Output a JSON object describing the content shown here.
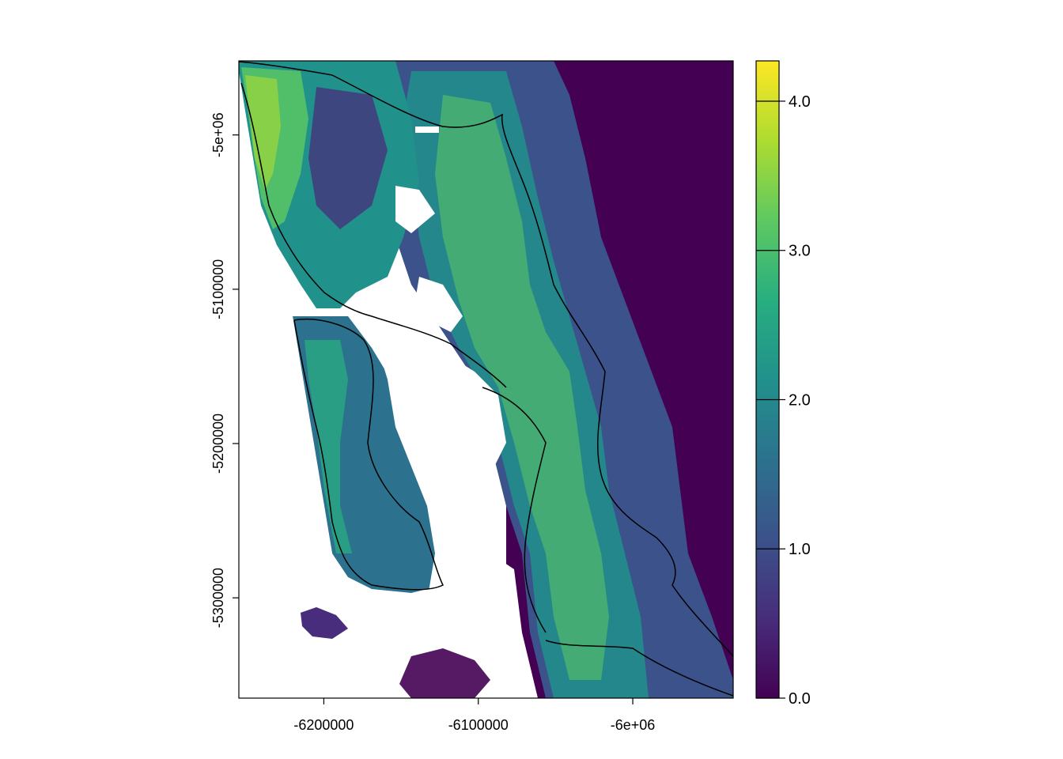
{
  "chart_data": {
    "type": "heatmap",
    "title": "",
    "xlabel": "",
    "ylabel": "",
    "xlim": [
      -6255000,
      -5935000
    ],
    "ylim": [
      -5365000,
      -4952000
    ],
    "x_ticks": [
      {
        "value": -6200000,
        "label": "-6200000"
      },
      {
        "value": -6100000,
        "label": "-6100000"
      },
      {
        "value": -6000000,
        "label": "-6e+06"
      }
    ],
    "y_ticks": [
      {
        "value": -5000000,
        "label": "-5e+06"
      },
      {
        "value": -5100000,
        "label": "-5100000"
      },
      {
        "value": -5200000,
        "label": "-5200000"
      },
      {
        "value": -5300000,
        "label": "-5300000"
      }
    ],
    "colorbar": {
      "min": 0,
      "max": 4.27,
      "palette": "viridis",
      "ticks": [
        {
          "value": 0,
          "label": "0.0"
        },
        {
          "value": 1,
          "label": "1.0"
        },
        {
          "value": 2,
          "label": "2.0"
        },
        {
          "value": 3,
          "label": "3.0"
        },
        {
          "value": 4,
          "label": "4.0"
        }
      ]
    },
    "colors": [
      "#440154",
      "#472d7b",
      "#3b528b",
      "#2c728e",
      "#21918c",
      "#28ae80",
      "#5ec962",
      "#addc30",
      "#fde725"
    ]
  }
}
